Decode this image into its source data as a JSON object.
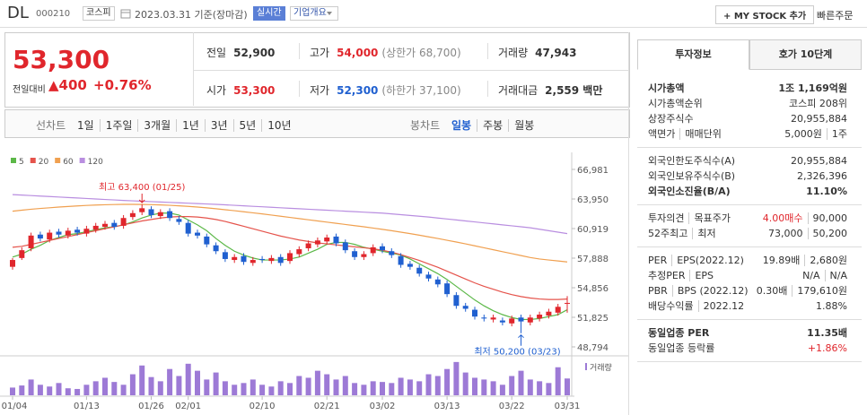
{
  "header": {
    "name": "DL",
    "code": "000210",
    "market": "코스피",
    "date": "2023.03.31 기준(장마감)",
    "realtime": "실시간",
    "company": "기업개요",
    "mystock": "+ MY STOCK 추가",
    "quick_order": "빠른주문"
  },
  "quote": {
    "price": "53,300",
    "change_label": "전일대비",
    "change": "▲400",
    "change_rate": "+0.76%"
  },
  "summary": [
    {
      "label": "전일",
      "value": "52,900"
    },
    {
      "label": "고가",
      "value": "54,000",
      "note": "(상한가 68,700)"
    },
    {
      "label": "거래량",
      "value": "47,943"
    },
    {
      "label": "시가",
      "value": "53,300"
    },
    {
      "label": "저가",
      "value": "52,300",
      "note": "(하한가 37,100)"
    },
    {
      "label": "거래대금",
      "value": "2,559 백만"
    }
  ],
  "periods": {
    "line_label": "선차트",
    "line_tabs": [
      "1일",
      "1주일",
      "3개월",
      "1년",
      "3년",
      "5년",
      "10년"
    ],
    "candle_label": "봉차트",
    "candle_tabs": [
      "일봉",
      "주봉",
      "월봉"
    ]
  },
  "invest_panel": {
    "tabs": [
      "투자정보",
      "호가 10단계"
    ],
    "sections": [
      [
        {
          "label": [
            "시가총액"
          ],
          "value": [
            "1조 1,169억원"
          ]
        },
        {
          "label": [
            "시가총액순위"
          ],
          "value": [
            "코스피 208위"
          ]
        },
        {
          "label": [
            "상장주식수"
          ],
          "value": [
            "20,955,884"
          ]
        },
        {
          "label": [
            "액면가",
            "매매단위"
          ],
          "value": [
            "5,000원",
            "1주"
          ]
        }
      ],
      [
        {
          "label": [
            "외국인한도주식수(A)"
          ],
          "value": [
            "20,955,884"
          ]
        },
        {
          "label": [
            "외국인보유주식수(B)"
          ],
          "value": [
            "2,326,396"
          ]
        },
        {
          "label": [
            "외국인소진율(B/A)"
          ],
          "value": [
            "11.10%"
          ]
        }
      ],
      [
        {
          "label": [
            "투자의견",
            "목표주가"
          ],
          "value": [
            "4.00매수",
            "90,000"
          ]
        },
        {
          "label": [
            "52주최고",
            "최저"
          ],
          "value": [
            "73,000",
            "50,200"
          ]
        }
      ],
      [
        {
          "label": [
            "PER",
            "EPS(2022.12)"
          ],
          "value": [
            "19.89배",
            "2,680원"
          ]
        },
        {
          "label": [
            "추정PER",
            "EPS"
          ],
          "value": [
            "N/A",
            "N/A"
          ]
        },
        {
          "label": [
            "PBR",
            "BPS (2022.12)"
          ],
          "value": [
            "0.30배",
            "179,610원"
          ]
        },
        {
          "label": [
            "배당수익률",
            "2022.12"
          ],
          "value": [
            "1.88%"
          ]
        }
      ],
      [
        {
          "label": [
            "동일업종 PER"
          ],
          "value": [
            "11.35배"
          ]
        },
        {
          "label": [
            "동일업종 등락률"
          ],
          "value": [
            "+1.86%"
          ]
        }
      ]
    ]
  },
  "chart_data": {
    "type": "candlestick",
    "categories": [
      "01/04",
      null,
      null,
      null,
      null,
      null,
      null,
      null,
      "01/13",
      null,
      null,
      null,
      null,
      null,
      null,
      "01/26",
      null,
      null,
      null,
      "02/01",
      null,
      null,
      null,
      null,
      null,
      null,
      null,
      "02/10",
      null,
      null,
      null,
      null,
      null,
      null,
      "02/21",
      null,
      null,
      null,
      null,
      null,
      "03/02",
      null,
      null,
      null,
      null,
      null,
      null,
      "03/13",
      null,
      null,
      null,
      null,
      null,
      null,
      "03/22",
      null,
      null,
      null,
      null,
      null,
      "03/31"
    ],
    "open": [
      57000,
      57900,
      58900,
      60300,
      59800,
      60600,
      60200,
      60800,
      60400,
      60800,
      61100,
      61500,
      61200,
      62100,
      62600,
      62900,
      62200,
      62700,
      61900,
      61500,
      60500,
      60100,
      59200,
      58500,
      57700,
      58100,
      57400,
      57800,
      57600,
      58000,
      57600,
      58300,
      58900,
      59300,
      59600,
      60100,
      59500,
      58600,
      58000,
      58400,
      59100,
      58600,
      58100,
      57300,
      56900,
      56200,
      55700,
      55300,
      54100,
      53000,
      52600,
      51800,
      51600,
      51500,
      51200,
      51800,
      51300,
      51700,
      52000,
      52300,
      53300
    ],
    "high": [
      57900,
      59000,
      60500,
      60600,
      60800,
      60900,
      61000,
      61100,
      61200,
      61500,
      61700,
      61800,
      62300,
      62800,
      63400,
      63200,
      62900,
      63000,
      62200,
      61800,
      60800,
      60400,
      59500,
      58800,
      58300,
      58400,
      58000,
      58100,
      58200,
      58300,
      58700,
      59100,
      59700,
      60000,
      60300,
      60400,
      59800,
      58900,
      58600,
      59300,
      59400,
      58900,
      58400,
      57600,
      57200,
      56500,
      56000,
      55600,
      54400,
      53300,
      52900,
      52100,
      52100,
      51800,
      52000,
      52100,
      52100,
      52400,
      52700,
      53200,
      54000
    ],
    "low": [
      56700,
      57700,
      58600,
      59600,
      59500,
      60000,
      59900,
      60200,
      60100,
      60500,
      60800,
      60800,
      60900,
      61800,
      62300,
      62000,
      61900,
      61700,
      61300,
      60100,
      59900,
      59000,
      58300,
      57500,
      57400,
      57200,
      57100,
      57400,
      57300,
      57100,
      57300,
      58000,
      58600,
      59000,
      59300,
      59100,
      58400,
      57700,
      57700,
      58100,
      58400,
      57900,
      56900,
      56700,
      56000,
      55500,
      54900,
      53900,
      52700,
      52400,
      51600,
      51400,
      51300,
      51000,
      50900,
      50200,
      51000,
      51400,
      51700,
      52000,
      52300
    ],
    "close": [
      57700,
      58700,
      60200,
      59900,
      60500,
      60300,
      60700,
      60500,
      60900,
      61200,
      61400,
      61100,
      62000,
      62500,
      63000,
      62300,
      62600,
      62000,
      61600,
      60400,
      60200,
      59300,
      58600,
      57800,
      58000,
      57500,
      57700,
      57700,
      57900,
      57400,
      58400,
      58800,
      59400,
      59700,
      60000,
      59400,
      58700,
      58000,
      58300,
      59000,
      58700,
      58200,
      57200,
      57000,
      56300,
      55800,
      55200,
      54200,
      53000,
      52700,
      51900,
      51700,
      51800,
      51300,
      51700,
      51400,
      51800,
      52100,
      52400,
      52900,
      53300
    ],
    "up_color": "#e0262c",
    "down_color": "#2060d0",
    "moving_averages": [
      {
        "name": "5",
        "color": "#5cb848",
        "values": [
          58000,
          58300,
          58800,
          59200,
          59700,
          60000,
          60300,
          60400,
          60600,
          60800,
          61000,
          61100,
          61300,
          61600,
          62000,
          62300,
          62500,
          62500,
          62300,
          61800,
          61300,
          60700,
          59900,
          59200,
          58600,
          58200,
          57900,
          57700,
          57700,
          57700,
          57800,
          58000,
          58400,
          58800,
          59300,
          59500,
          59500,
          59300,
          59000,
          58800,
          58600,
          58400,
          58200,
          57800,
          57300,
          56800,
          56300,
          55700,
          55000,
          54300,
          53600,
          53000,
          52500,
          52100,
          51800,
          51600,
          51600,
          51700,
          51900,
          52100,
          52600
        ]
      },
      {
        "name": "20",
        "color": "#e5534b",
        "values": [
          59000,
          59100,
          59300,
          59500,
          59700,
          59900,
          60100,
          60300,
          60500,
          60700,
          60900,
          61100,
          61300,
          61500,
          61700,
          61850,
          62000,
          62100,
          62150,
          62150,
          62100,
          62000,
          61850,
          61650,
          61400,
          61150,
          60900,
          60650,
          60400,
          60150,
          59950,
          59750,
          59600,
          59450,
          59350,
          59250,
          59150,
          59050,
          58950,
          58850,
          58700,
          58500,
          58250,
          57950,
          57650,
          57300,
          56950,
          56550,
          56150,
          55750,
          55350,
          55000,
          54700,
          54400,
          54150,
          53950,
          53800,
          53700,
          53650,
          53650,
          53700
        ]
      },
      {
        "name": "60",
        "color": "#f0a050",
        "values": [
          62700,
          62800,
          62900,
          62980,
          63050,
          63120,
          63180,
          63240,
          63290,
          63330,
          63360,
          63380,
          63400,
          63400,
          63390,
          63370,
          63340,
          63300,
          63250,
          63190,
          63120,
          63040,
          62950,
          62850,
          62750,
          62640,
          62530,
          62420,
          62300,
          62180,
          62060,
          61940,
          61820,
          61700,
          61580,
          61460,
          61340,
          61220,
          61100,
          60970,
          60840,
          60700,
          60550,
          60400,
          60240,
          60070,
          59900,
          59720,
          59540,
          59350,
          59150,
          58950,
          58750,
          58550,
          58350,
          58150,
          57950,
          57800,
          57700,
          57600,
          57500
        ]
      },
      {
        "name": "120",
        "color": "#b98ee0",
        "values": [
          64400,
          64350,
          64300,
          64250,
          64200,
          64150,
          64100,
          64050,
          64000,
          63950,
          63900,
          63850,
          63800,
          63760,
          63720,
          63680,
          63640,
          63600,
          63560,
          63520,
          63480,
          63440,
          63400,
          63350,
          63300,
          63250,
          63200,
          63150,
          63100,
          63050,
          63000,
          62950,
          62900,
          62850,
          62800,
          62750,
          62700,
          62650,
          62600,
          62550,
          62500,
          62420,
          62340,
          62260,
          62180,
          62100,
          62000,
          61900,
          61800,
          61700,
          61600,
          61500,
          61400,
          61300,
          61200,
          61100,
          61000,
          60850,
          60700,
          60550,
          60400
        ]
      }
    ],
    "ylim": [
      48794,
      66981
    ],
    "yticks": [
      {
        "value": 48794,
        "label": "48,794"
      },
      {
        "value": 51825,
        "label": "51,825"
      },
      {
        "value": 54856,
        "label": "54,856"
      },
      {
        "value": 57888,
        "label": "57,888"
      },
      {
        "value": 60919,
        "label": "60,919"
      },
      {
        "value": 63950,
        "label": "63,950"
      },
      {
        "value": 66981,
        "label": "66,981"
      }
    ],
    "annotations": {
      "high": "최고 63,400 (01/25)",
      "low": "최저 50,200 (03/23)"
    },
    "volume": {
      "name": "거래량",
      "color": "#9d7ad6",
      "ylim": [
        0,
        110000
      ],
      "values": [
        22000,
        28000,
        45000,
        30000,
        25000,
        35000,
        20000,
        18000,
        30000,
        40000,
        50000,
        38000,
        30000,
        60000,
        85000,
        52000,
        40000,
        75000,
        55000,
        90000,
        70000,
        45000,
        65000,
        40000,
        30000,
        35000,
        45000,
        30000,
        25000,
        40000,
        35000,
        55000,
        50000,
        70000,
        60000,
        45000,
        55000,
        35000,
        30000,
        40000,
        38000,
        35000,
        50000,
        45000,
        40000,
        60000,
        55000,
        75000,
        95000,
        65000,
        50000,
        45000,
        40000,
        30000,
        55000,
        70000,
        45000,
        40000,
        35000,
        80000,
        47943
      ]
    }
  }
}
